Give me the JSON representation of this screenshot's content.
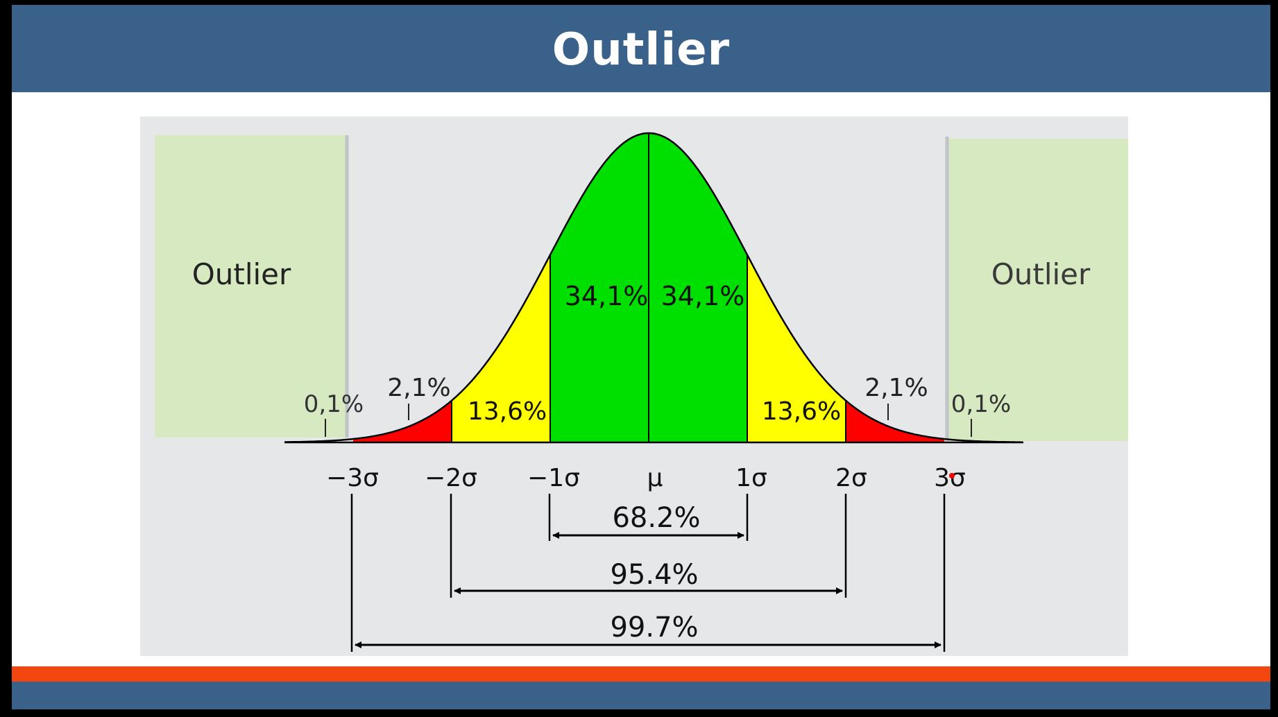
{
  "slide": {
    "title": "Outlier"
  },
  "diagram": {
    "outlier_left_label": "Outlier",
    "outlier_right_label": "Outlier",
    "axis_ticks": [
      "−3σ",
      "−2σ",
      "−1σ",
      "μ",
      "1σ",
      "2σ",
      "3σ"
    ],
    "region_labels": {
      "left_tail_far": "0,1%",
      "left_tail": "2,1%",
      "left_yellow": "13,6%",
      "left_green": "34,1%",
      "right_green": "34,1%",
      "right_yellow": "13,6%",
      "right_tail": "2,1%",
      "right_tail_far": "0,1%"
    },
    "ranges": {
      "one_sigma": "68.2%",
      "two_sigma": "95.4%",
      "three_sigma": "99.7%"
    },
    "colors": {
      "green": "#00e000",
      "yellow": "#ffff00",
      "red": "#ff0000",
      "outlier_box": "#d7e9c0",
      "background": "#e5e7e8",
      "header": "#3a6189",
      "accent": "#f4460f"
    }
  }
}
